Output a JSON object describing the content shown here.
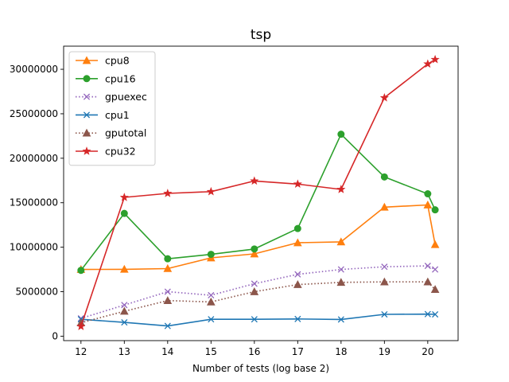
{
  "chart_data": {
    "type": "line",
    "title": "tsp",
    "xlabel": "Number of tests (log base 2)",
    "ylabel": "",
    "xlim": [
      11.6,
      20.7
    ],
    "ylim": [
      -500000,
      32600000
    ],
    "xticks": [
      12,
      13,
      14,
      15,
      16,
      17,
      18,
      19,
      20
    ],
    "yticks": [
      0,
      5000000,
      10000000,
      15000000,
      20000000,
      25000000,
      30000000
    ],
    "x": [
      12,
      13,
      14,
      15,
      16,
      17,
      18,
      19,
      20,
      20.17
    ],
    "legend_position": "upper-left",
    "series": [
      {
        "name": "cpu8",
        "color": "#ff7f0e",
        "style": "solid",
        "marker": "triangle",
        "values": [
          7500000,
          7520000,
          7600000,
          8800000,
          9250000,
          10500000,
          10600000,
          14500000,
          14750000,
          10300000
        ]
      },
      {
        "name": "cpu16",
        "color": "#2ca02c",
        "style": "solid",
        "marker": "circle",
        "values": [
          7400000,
          13800000,
          8700000,
          9200000,
          9800000,
          12100000,
          22700000,
          17900000,
          16000000,
          14200000
        ]
      },
      {
        "name": "gpuexec",
        "color": "#9467bd",
        "style": "dotted",
        "marker": "x",
        "values": [
          2000000,
          3500000,
          5000000,
          4600000,
          5900000,
          6950000,
          7500000,
          7800000,
          7900000,
          7500000
        ]
      },
      {
        "name": "cpu1",
        "color": "#1f77b4",
        "style": "solid",
        "marker": "x",
        "values": [
          1900000,
          1550000,
          1150000,
          1900000,
          1900000,
          1930000,
          1880000,
          2450000,
          2480000,
          2450000
        ]
      },
      {
        "name": "gputotal",
        "color": "#8c564b",
        "style": "dotted",
        "marker": "triangle",
        "values": [
          1500000,
          2800000,
          4000000,
          3850000,
          5000000,
          5800000,
          6050000,
          6100000,
          6100000,
          5250000
        ]
      },
      {
        "name": "cpu32",
        "color": "#d62728",
        "style": "solid",
        "marker": "star",
        "values": [
          1100000,
          15600000,
          16050000,
          16250000,
          17450000,
          17100000,
          16500000,
          26800000,
          30600000,
          31100000
        ]
      }
    ]
  }
}
